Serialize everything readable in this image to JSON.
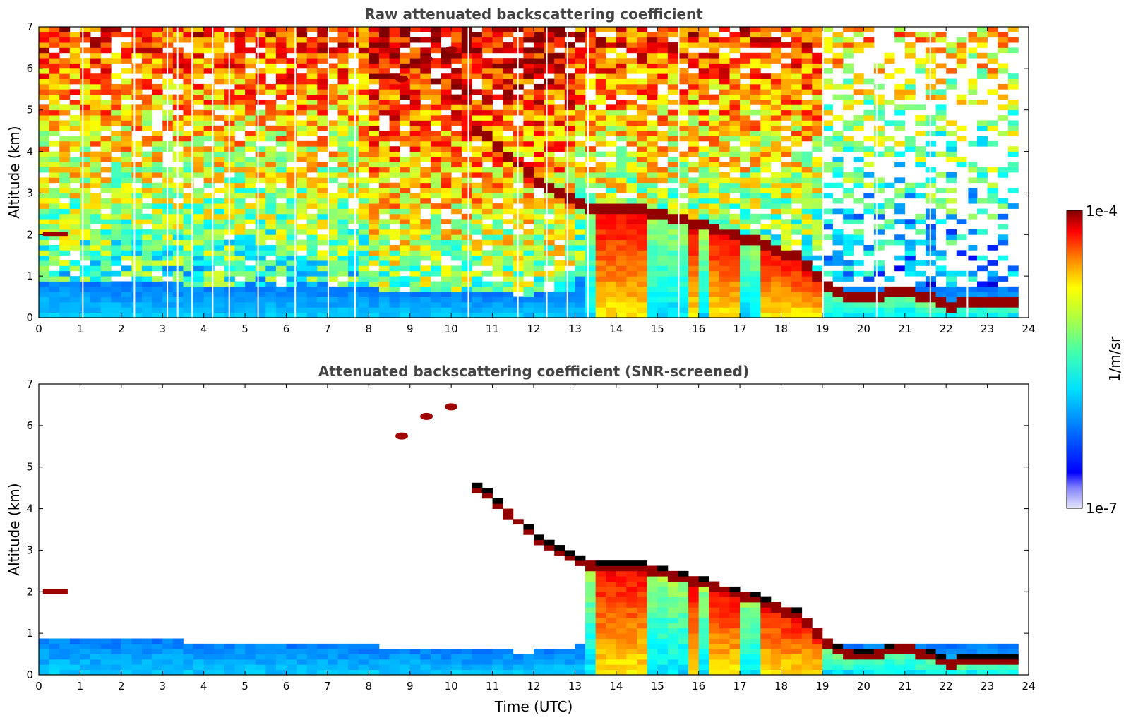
{
  "chart_data": [
    {
      "type": "heatmap",
      "title": "Raw attenuated backscattering coefficient",
      "xlabel": "",
      "ylabel": "Altitude (km)",
      "xlim": [
        0,
        24
      ],
      "ylim": [
        0,
        7
      ],
      "xticks": [
        "0",
        "1",
        "2",
        "3",
        "4",
        "5",
        "6",
        "7",
        "8",
        "9",
        "10",
        "11",
        "12",
        "13",
        "14",
        "15",
        "16",
        "17",
        "18",
        "19",
        "20",
        "21",
        "22",
        "23",
        "24"
      ],
      "yticks": [
        "0",
        "1",
        "2",
        "3",
        "4",
        "5",
        "6",
        "7"
      ],
      "screened": false,
      "boundary_layer_top_km": [
        [
          0,
          0.9
        ],
        [
          2,
          0.85
        ],
        [
          4,
          0.8
        ],
        [
          6,
          0.75
        ],
        [
          8,
          0.7
        ],
        [
          10,
          0.6
        ],
        [
          12,
          0.55
        ],
        [
          13,
          0.7
        ]
      ],
      "cloud_layer_km": [
        [
          10.7,
          4.5
        ],
        [
          11.5,
          3.8
        ],
        [
          12.3,
          3.1
        ],
        [
          13,
          2.8
        ],
        [
          13.5,
          2.6
        ],
        [
          14.5,
          2.6
        ],
        [
          15.5,
          2.4
        ],
        [
          16.5,
          2.1
        ],
        [
          17.5,
          1.8
        ],
        [
          18.5,
          1.4
        ],
        [
          19.3,
          0.6
        ],
        [
          20,
          0.45
        ],
        [
          21,
          0.7
        ],
        [
          22,
          0.3
        ],
        [
          23,
          0.35
        ],
        [
          23.8,
          0.35
        ]
      ]
    },
    {
      "type": "heatmap",
      "title": "Attenuated backscattering coefficient (SNR-screened)",
      "xlabel": "Time (UTC)",
      "ylabel": "Altitude (km)",
      "xlim": [
        0,
        24
      ],
      "ylim": [
        0,
        7
      ],
      "xticks": [
        "0",
        "1",
        "2",
        "3",
        "4",
        "5",
        "6",
        "7",
        "8",
        "9",
        "10",
        "11",
        "12",
        "13",
        "14",
        "15",
        "16",
        "17",
        "18",
        "19",
        "20",
        "21",
        "22",
        "23",
        "24"
      ],
      "yticks": [
        "0",
        "1",
        "2",
        "3",
        "4",
        "5",
        "6",
        "7"
      ],
      "screened": true
    }
  ],
  "colorbar": {
    "max_label": "1e-4",
    "min_label": "1e-7",
    "unit_label": "1/m/sr",
    "colormap": "jet",
    "scale": "log"
  }
}
